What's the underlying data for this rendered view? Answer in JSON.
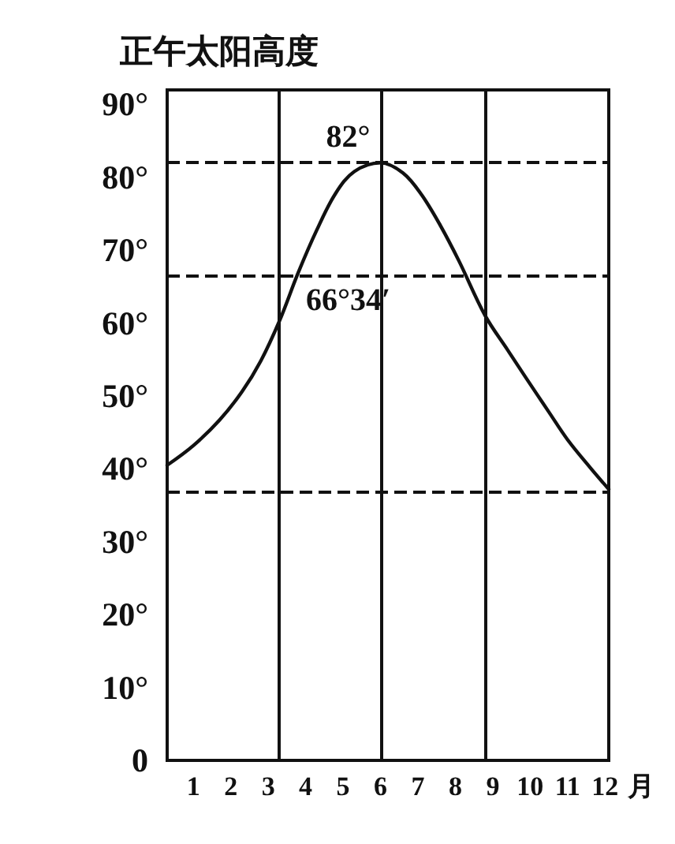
{
  "chart_data": {
    "type": "line",
    "ylabel": "正午太阳高度",
    "xlabel": "月",
    "x": [
      0.3,
      1,
      1.7,
      2.3,
      2.8,
      3.3,
      3.8,
      4.3,
      4.8,
      5.3,
      6,
      6.6,
      7.1,
      7.6,
      8.1,
      8.8,
      9.4,
      9.9,
      10.5,
      11,
      11.6,
      12.1
    ],
    "values": [
      40.5,
      43.2,
      46.7,
      50.6,
      54.8,
      60.3,
      66.9,
      72.8,
      77.8,
      80.8,
      82,
      80.6,
      77.6,
      73.4,
      68.5,
      61,
      56.3,
      52.4,
      47.8,
      44,
      40.2,
      37.2
    ],
    "color": "#111111",
    "marker": "none",
    "line_style": "solid",
    "xlim": [
      0.3,
      12.1
    ],
    "xticks": [
      1,
      2,
      3,
      4,
      5,
      6,
      7,
      8,
      9,
      10,
      11,
      12
    ],
    "ylim": [
      0,
      92
    ],
    "yticks": [
      0,
      {
        "value": 10,
        "label": "10°"
      },
      {
        "value": 20,
        "label": "20°"
      },
      {
        "value": 30,
        "label": "30°"
      },
      {
        "value": 40,
        "label": "40°"
      },
      {
        "value": 50,
        "label": "50°"
      },
      {
        "value": 60,
        "label": "60°"
      },
      {
        "value": 70,
        "label": "70°"
      },
      {
        "value": 80,
        "label": "80°"
      },
      {
        "value": 90,
        "label": "90°"
      }
    ],
    "ref_lines": [
      {
        "axis": "y",
        "value": 82,
        "label": "82°",
        "line_style": "dashed"
      },
      {
        "axis": "y",
        "value": 66.57,
        "label": "66°34′",
        "line_style": "dashed"
      },
      {
        "axis": "y",
        "value": 36.9,
        "line_style": "dashed"
      },
      {
        "axis": "x",
        "value": 3.3,
        "line_style": "solid"
      },
      {
        "axis": "x",
        "value": 6,
        "line_style": "solid"
      },
      {
        "axis": "x",
        "value": 8.8,
        "line_style": "solid"
      }
    ]
  }
}
